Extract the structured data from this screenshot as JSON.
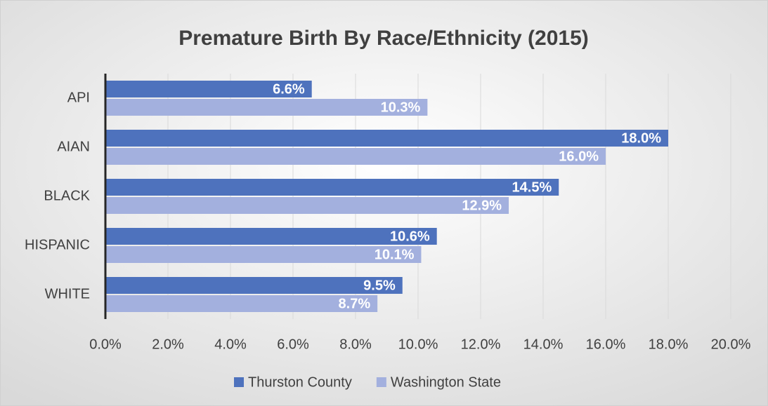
{
  "chart_data": {
    "type": "bar",
    "orientation": "horizontal",
    "title": "Premature Birth By Race/Ethnicity (2015)",
    "categories": [
      "API",
      "AIAN",
      "BLACK",
      "HISPANIC",
      "WHITE"
    ],
    "series": [
      {
        "name": "Thurston County",
        "color": "#4e72bd",
        "values": [
          6.6,
          18.0,
          14.5,
          10.6,
          9.5
        ],
        "value_labels": [
          "6.6%",
          "18.0%",
          "14.5%",
          "10.6%",
          "9.5%"
        ]
      },
      {
        "name": "Washington State",
        "color": "#a3b0de",
        "values": [
          10.3,
          16.0,
          12.9,
          10.1,
          8.7
        ],
        "value_labels": [
          "10.3%",
          "16.0%",
          "12.9%",
          "10.1%",
          "8.7%"
        ]
      }
    ],
    "xlim": [
      0,
      20
    ],
    "xticks": [
      {
        "value": 0,
        "label": "0.0%"
      },
      {
        "value": 2,
        "label": "2.0%"
      },
      {
        "value": 4,
        "label": "4.0%"
      },
      {
        "value": 6,
        "label": "6.0%"
      },
      {
        "value": 8,
        "label": "8.0%"
      },
      {
        "value": 10,
        "label": "10.0%"
      },
      {
        "value": 12,
        "label": "12.0%"
      },
      {
        "value": 14,
        "label": "14.0%"
      },
      {
        "value": 16,
        "label": "16.0%"
      },
      {
        "value": 18,
        "label": "18.0%"
      },
      {
        "value": 20,
        "label": "20.0%"
      }
    ],
    "grid": true,
    "legend": "bottom"
  }
}
